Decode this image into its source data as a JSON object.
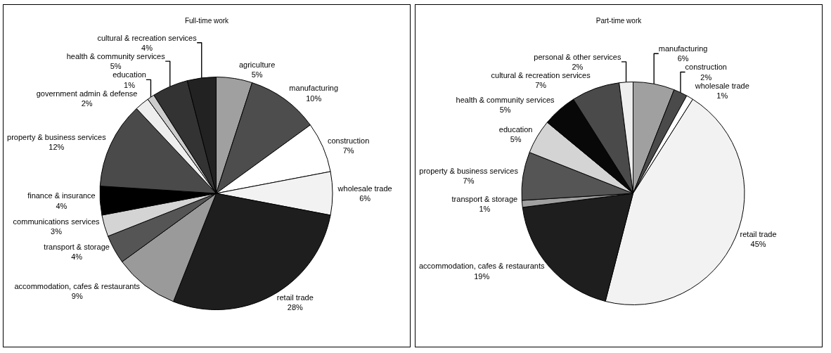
{
  "chart_data": [
    {
      "type": "pie",
      "title": "Full-time work",
      "categories": [
        "agriculture",
        "manufacturing",
        "construction",
        "wholesale trade",
        "retail trade",
        "accommodation, cafes & restaurants",
        "transport & storage",
        "communications services",
        "finance & insurance",
        "property & business services",
        "government admin & defense",
        "education",
        "health & community services",
        "cultural & recreation services"
      ],
      "values": [
        5,
        10,
        7,
        6,
        28,
        9,
        4,
        3,
        4,
        12,
        2,
        1,
        5,
        4
      ],
      "value_labels": [
        "5%",
        "10%",
        "7%",
        "6%",
        "28%",
        "9%",
        "4%",
        "3%",
        "4%",
        "12%",
        "2%",
        "1%",
        "5%",
        "4%"
      ],
      "colors": [
        "#a0a0a0",
        "#4d4d4d",
        "#ffffff",
        "#f2f2f2",
        "#1e1e1e",
        "#9a9a9a",
        "#555555",
        "#d4d4d4",
        "#000000",
        "#4a4a4a",
        "#eeeeee",
        "#cccccc",
        "#333333",
        "#222222"
      ]
    },
    {
      "type": "pie",
      "title": "Part-time work",
      "categories": [
        "manufacturing",
        "construction",
        "wholesale trade",
        "retail trade",
        "accommodation, cafes & restaurants",
        "transport & storage",
        "property & business services",
        "education",
        "health & community services",
        "cultural & recreation services",
        "personal & other services"
      ],
      "values": [
        6,
        2,
        1,
        45,
        19,
        1,
        7,
        5,
        5,
        7,
        2
      ],
      "value_labels": [
        "6%",
        "2%",
        "1%",
        "45%",
        "19%",
        "1%",
        "7%",
        "5%",
        "5%",
        "7%",
        "2%"
      ],
      "colors": [
        "#a0a0a0",
        "#4a4a4a",
        "#ffffff",
        "#f2f2f2",
        "#1e1e1e",
        "#a0a0a0",
        "#555555",
        "#d4d4d4",
        "#080808",
        "#4a4a4a",
        "#eeeeee"
      ]
    }
  ]
}
